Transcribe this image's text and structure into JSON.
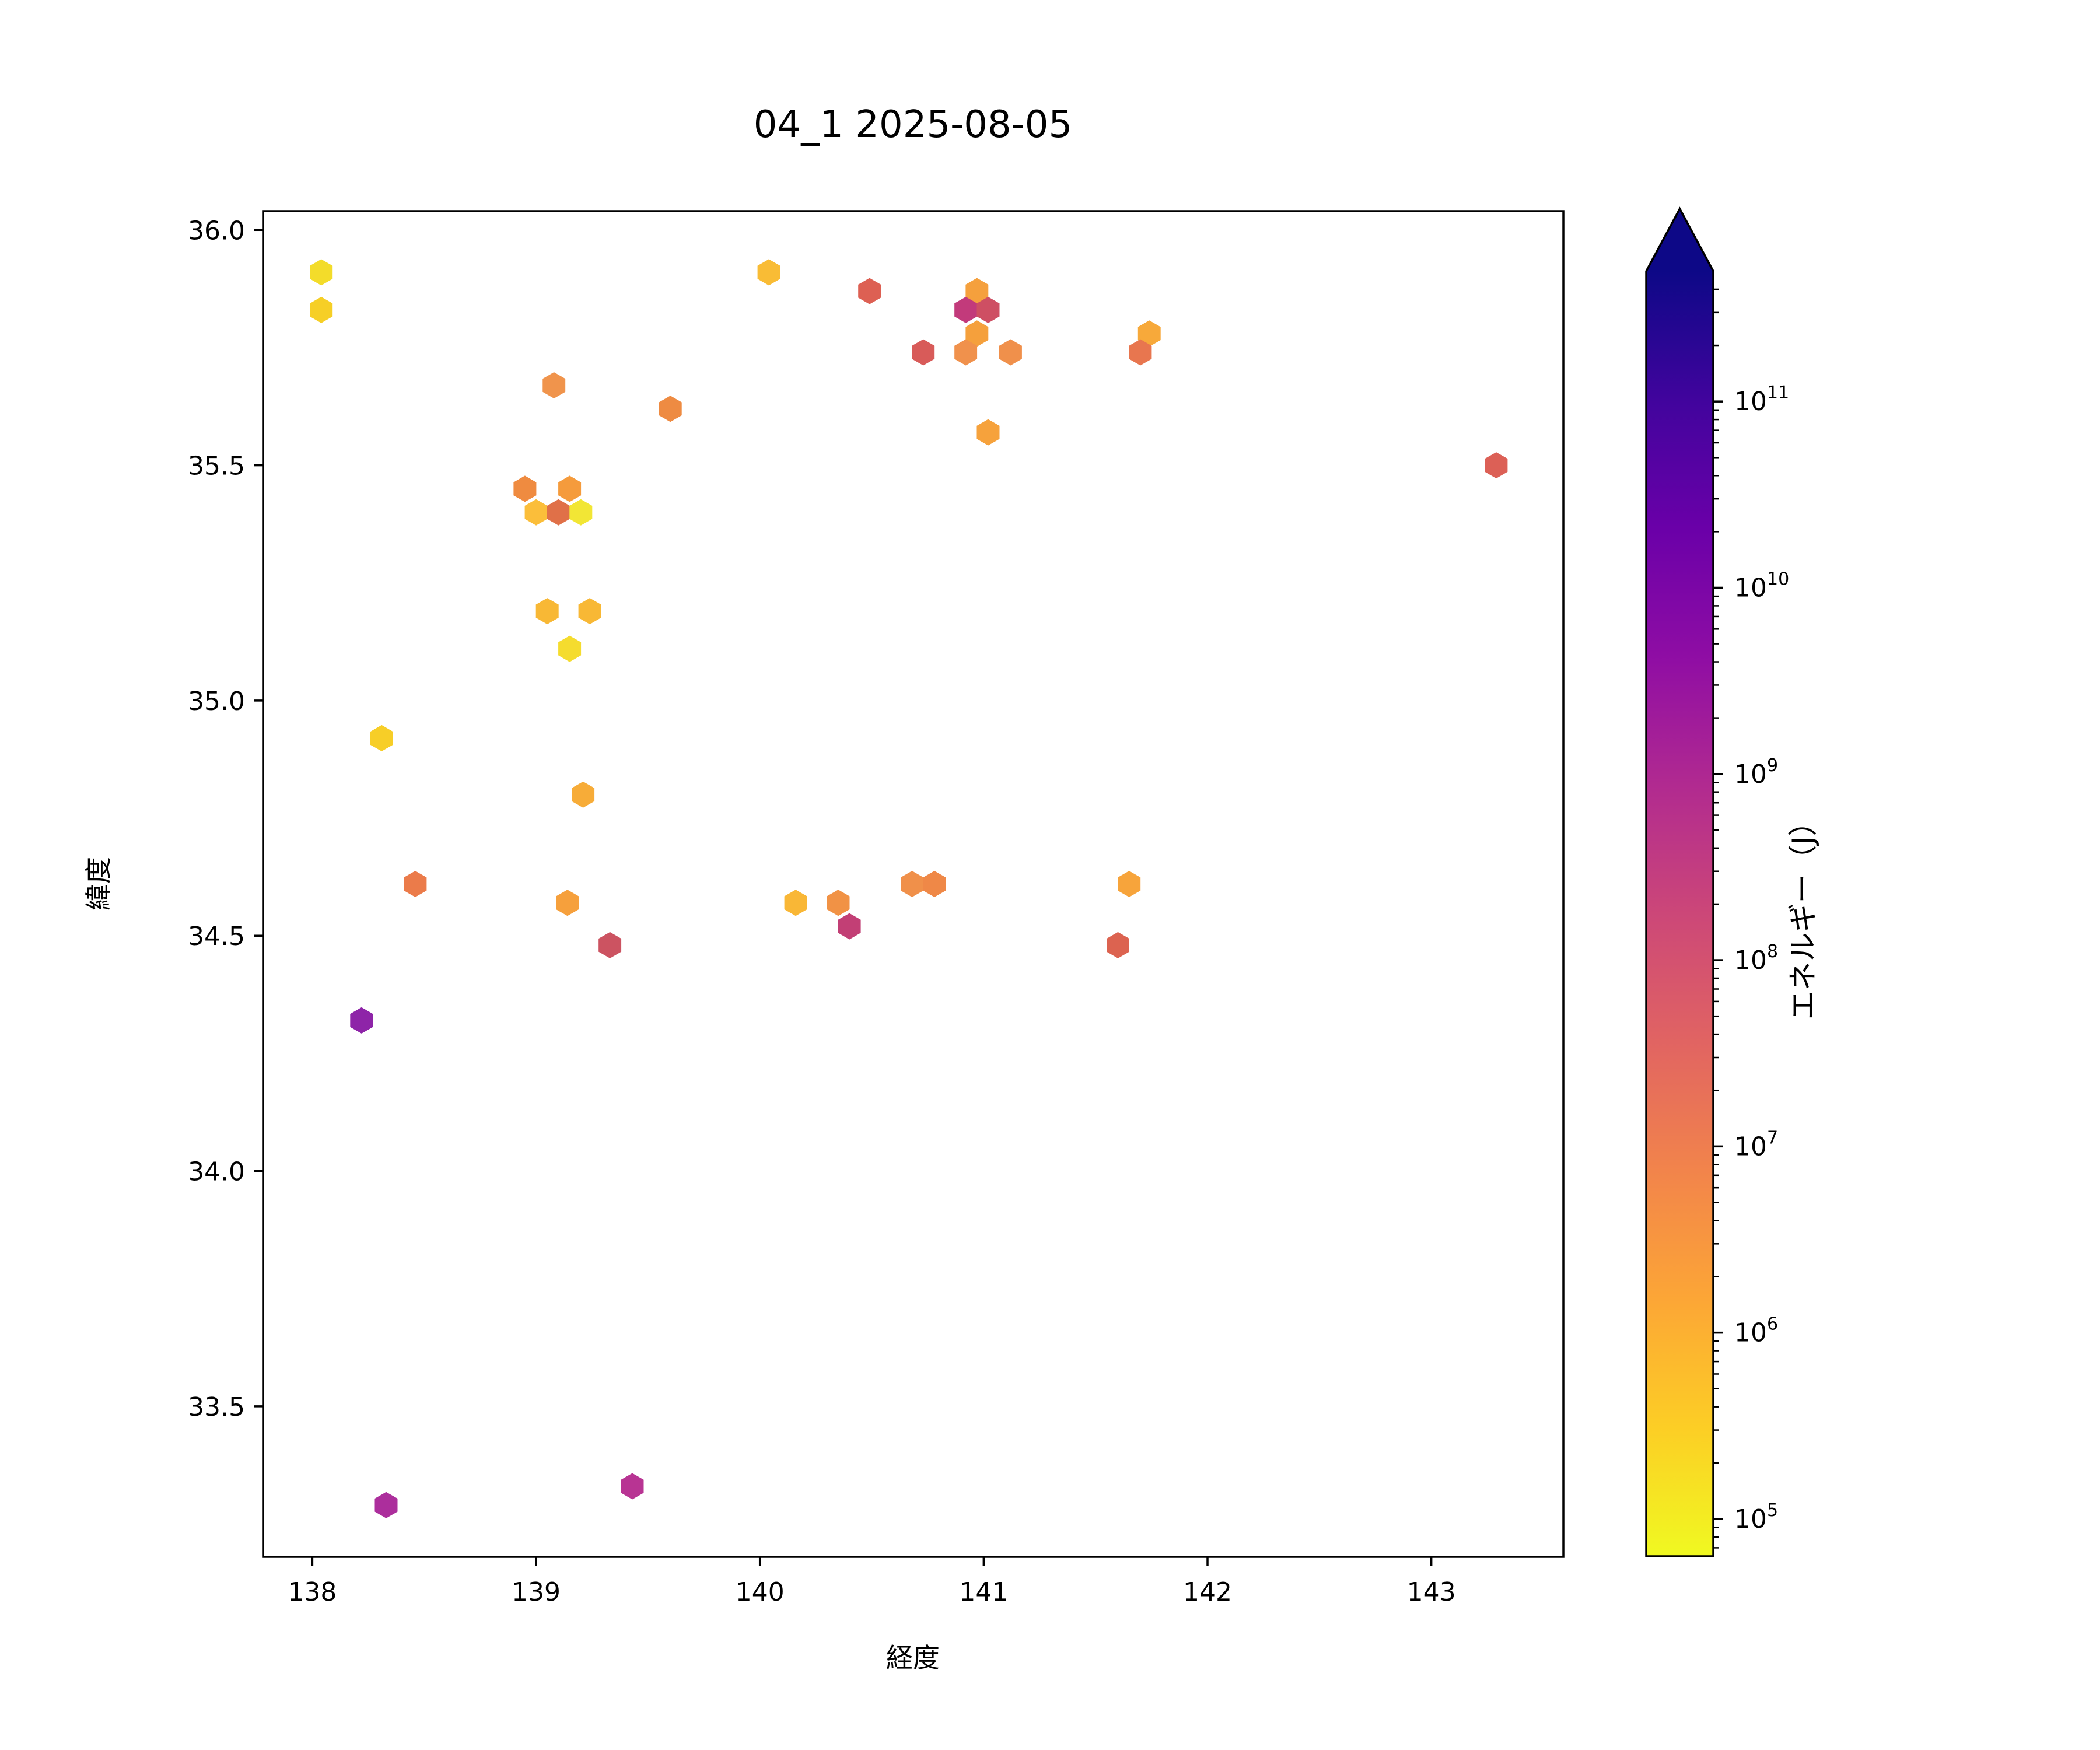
{
  "title": "04_1 2025-08-05",
  "chart_data": {
    "type": "scatter",
    "subtype": "hexbin",
    "title": "04_1 2025-08-05",
    "xlabel": "経度",
    "ylabel": "緯度",
    "xlim": [
      137.78,
      143.59
    ],
    "ylim": [
      33.18,
      36.04
    ],
    "grid": false,
    "legend": "none (colorbar on right)",
    "xticks": [
      {
        "value": 138,
        "label": "138"
      },
      {
        "value": 139,
        "label": "139"
      },
      {
        "value": 140,
        "label": "140"
      },
      {
        "value": 141,
        "label": "141"
      },
      {
        "value": 142,
        "label": "142"
      },
      {
        "value": 143,
        "label": "143"
      }
    ],
    "yticks": [
      {
        "value": 36.0,
        "label": "36.0"
      },
      {
        "value": 35.5,
        "label": "35.5"
      },
      {
        "value": 35.0,
        "label": "35.0"
      },
      {
        "value": 34.5,
        "label": "34.5"
      },
      {
        "value": 34.0,
        "label": "34.0"
      },
      {
        "value": 33.5,
        "label": "33.5"
      }
    ],
    "colorbar": {
      "label": "エネルギー（J）",
      "scale": "log",
      "extend": "max",
      "colormap": "plasma reversed (yellow = low at bottom, dark navy = high at top)",
      "vmin": 63000,
      "vmax": 500000000000,
      "major_ticks": [
        {
          "value": 100000.0,
          "exp": "5"
        },
        {
          "value": 1000000.0,
          "exp": "6"
        },
        {
          "value": 10000000.0,
          "exp": "7"
        },
        {
          "value": 100000000.0,
          "exp": "8"
        },
        {
          "value": 1000000000.0,
          "exp": "9"
        },
        {
          "value": 10000000000.0,
          "exp": "10"
        },
        {
          "value": 100000000000.0,
          "exp": "11"
        }
      ],
      "gradient_stops_bottom_to_top": [
        "#f0f921",
        "#fcce25",
        "#fca636",
        "#f2844b",
        "#e16462",
        "#cc4778",
        "#b12a90",
        "#8f0da4",
        "#6a00a8",
        "#41049d",
        "#0d0887"
      ]
    },
    "points": [
      {
        "lon": 138.04,
        "lat": 35.91,
        "energy_j": 220000.0,
        "color": "#F3DC2A"
      },
      {
        "lon": 138.04,
        "lat": 35.83,
        "energy_j": 350000.0,
        "color": "#F6CF26"
      },
      {
        "lon": 140.04,
        "lat": 35.91,
        "energy_j": 800000.0,
        "color": "#F9BC35"
      },
      {
        "lon": 140.49,
        "lat": 35.87,
        "energy_j": 35000000.0,
        "color": "#DD6053"
      },
      {
        "lon": 140.97,
        "lat": 35.87,
        "energy_j": 2000000.0,
        "color": "#F5A03D"
      },
      {
        "lon": 140.92,
        "lat": 35.83,
        "energy_j": 450000000.0,
        "color": "#C23A7B"
      },
      {
        "lon": 141.02,
        "lat": 35.83,
        "energy_j": 130000000.0,
        "color": "#CE4F63"
      },
      {
        "lon": 140.97,
        "lat": 35.78,
        "energy_j": 2000000.0,
        "color": "#F5A03C"
      },
      {
        "lon": 140.73,
        "lat": 35.74,
        "energy_j": 60000000.0,
        "color": "#D85B59"
      },
      {
        "lon": 140.92,
        "lat": 35.74,
        "energy_j": 4500000.0,
        "color": "#F0914C"
      },
      {
        "lon": 141.12,
        "lat": 35.74,
        "energy_j": 4500000.0,
        "color": "#F0904B"
      },
      {
        "lon": 141.74,
        "lat": 35.78,
        "energy_j": 1500000.0,
        "color": "#F7A93A"
      },
      {
        "lon": 141.7,
        "lat": 35.74,
        "energy_j": 12000000.0,
        "color": "#E8764F"
      },
      {
        "lon": 141.02,
        "lat": 35.57,
        "energy_j": 2000000.0,
        "color": "#F6A23C"
      },
      {
        "lon": 139.08,
        "lat": 35.67,
        "energy_j": 4000000.0,
        "color": "#F0944C"
      },
      {
        "lon": 139.6,
        "lat": 35.62,
        "energy_j": 5000000.0,
        "color": "#EE8B42"
      },
      {
        "lon": 143.29,
        "lat": 35.5,
        "energy_j": 35000000.0,
        "color": "#DC6056"
      },
      {
        "lon": 138.95,
        "lat": 35.45,
        "energy_j": 5000000.0,
        "color": "#EF8B40"
      },
      {
        "lon": 139.15,
        "lat": 35.45,
        "energy_j": 2300000.0,
        "color": "#F59B3C"
      },
      {
        "lon": 139.0,
        "lat": 35.4,
        "energy_j": 800000.0,
        "color": "#FBBE3A"
      },
      {
        "lon": 139.1,
        "lat": 35.4,
        "energy_j": 20000000.0,
        "color": "#E07048"
      },
      {
        "lon": 139.2,
        "lat": 35.4,
        "energy_j": 130000.0,
        "color": "#F2E635"
      },
      {
        "lon": 139.05,
        "lat": 35.19,
        "energy_j": 850000.0,
        "color": "#F8B835"
      },
      {
        "lon": 139.24,
        "lat": 35.19,
        "energy_j": 850000.0,
        "color": "#F8B835"
      },
      {
        "lon": 139.15,
        "lat": 35.11,
        "energy_j": 220000.0,
        "color": "#F5DC2E"
      },
      {
        "lon": 138.31,
        "lat": 34.92,
        "energy_j": 400000.0,
        "color": "#F7CE27"
      },
      {
        "lon": 139.21,
        "lat": 34.8,
        "energy_j": 1300000.0,
        "color": "#F7AC38"
      },
      {
        "lon": 138.46,
        "lat": 34.61,
        "energy_j": 9000000.0,
        "color": "#EB7B4A"
      },
      {
        "lon": 139.14,
        "lat": 34.57,
        "energy_j": 2000000.0,
        "color": "#F6A03C"
      },
      {
        "lon": 139.33,
        "lat": 34.48,
        "energy_j": 110000000.0,
        "color": "#CC5361"
      },
      {
        "lon": 140.16,
        "lat": 34.57,
        "energy_j": 900000.0,
        "color": "#F9B736"
      },
      {
        "lon": 140.35,
        "lat": 34.57,
        "energy_j": 4000000.0,
        "color": "#F19245"
      },
      {
        "lon": 140.4,
        "lat": 34.52,
        "energy_j": 400000000.0,
        "color": "#C23F75"
      },
      {
        "lon": 140.68,
        "lat": 34.61,
        "energy_j": 4500000.0,
        "color": "#F0904A"
      },
      {
        "lon": 140.78,
        "lat": 34.61,
        "energy_j": 5500000.0,
        "color": "#EF8847"
      },
      {
        "lon": 141.65,
        "lat": 34.61,
        "energy_j": 1800000.0,
        "color": "#F7A43B"
      },
      {
        "lon": 141.6,
        "lat": 34.48,
        "energy_j": 30000000.0,
        "color": "#DC6350"
      },
      {
        "lon": 138.22,
        "lat": 34.32,
        "energy_j": 7000000000.0,
        "color": "#8E24A8"
      },
      {
        "lon": 138.33,
        "lat": 33.29,
        "energy_j": 2600000000.0,
        "color": "#AC2E9C"
      },
      {
        "lon": 139.43,
        "lat": 33.33,
        "energy_j": 1400000000.0,
        "color": "#B83493"
      }
    ]
  }
}
